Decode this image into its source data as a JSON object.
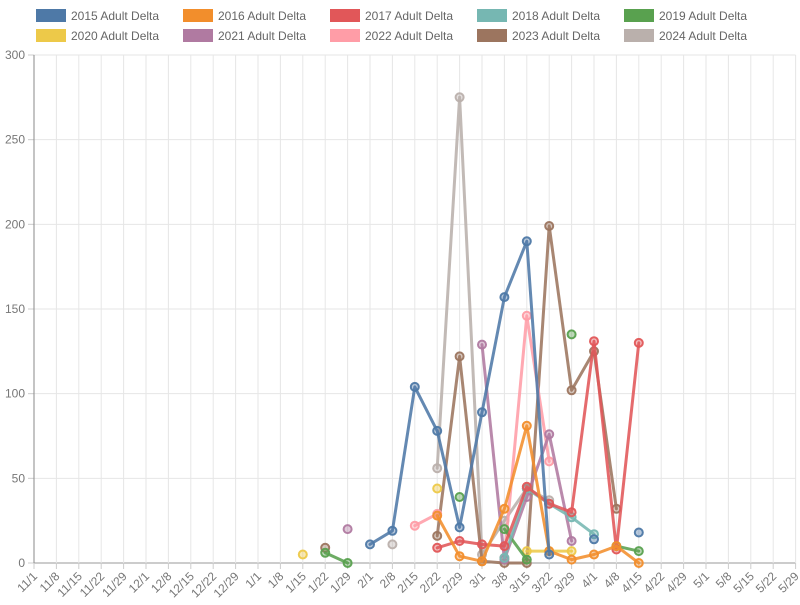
{
  "chart_data": {
    "type": "line",
    "title": "",
    "legend_position": "top",
    "legend_rows": 2,
    "grid": true,
    "background": "#ffffff",
    "axis_color": "#8a8a8a",
    "gridline_color": "#e6e6e6",
    "tick_label_color": "#777777",
    "legend_label_color": "#666666",
    "categories": [
      "11/1",
      "11/8",
      "11/15",
      "11/22",
      "11/29",
      "12/1",
      "12/8",
      "12/15",
      "12/22",
      "12/29",
      "1/1",
      "1/8",
      "1/15",
      "1/22",
      "1/29",
      "2/1",
      "2/8",
      "2/15",
      "2/22",
      "2/29",
      "3/1",
      "3/8",
      "3/15",
      "3/22",
      "3/29",
      "4/1",
      "4/8",
      "4/15",
      "4/22",
      "4/29",
      "5/1",
      "5/8",
      "5/15",
      "5/22",
      "5/29"
    ],
    "ylim": [
      0,
      300
    ],
    "y_ticks": [
      0,
      50,
      100,
      150,
      200,
      250,
      300
    ],
    "series": [
      {
        "name": "2015 Adult Delta",
        "color": "#4e79a7",
        "values": [
          null,
          null,
          null,
          null,
          null,
          null,
          null,
          null,
          null,
          null,
          null,
          null,
          null,
          null,
          null,
          11,
          19,
          104,
          78,
          21,
          89,
          157,
          190,
          5,
          null,
          14,
          null,
          18,
          null,
          null,
          null,
          null,
          null,
          null,
          null
        ]
      },
      {
        "name": "2016 Adult Delta",
        "color": "#f28e2c",
        "values": [
          null,
          null,
          null,
          null,
          null,
          null,
          null,
          null,
          null,
          null,
          null,
          null,
          null,
          null,
          null,
          null,
          null,
          null,
          28,
          4,
          1,
          32,
          81,
          7,
          2,
          5,
          10,
          0,
          null,
          null,
          null,
          null,
          null,
          null,
          null
        ]
      },
      {
        "name": "2017 Adult Delta",
        "color": "#e15759",
        "values": [
          null,
          null,
          null,
          null,
          null,
          null,
          null,
          null,
          null,
          null,
          null,
          null,
          null,
          null,
          null,
          null,
          null,
          null,
          9,
          13,
          11,
          10,
          45,
          35,
          30,
          131,
          8,
          130,
          null,
          null,
          null,
          null,
          null,
          null,
          null
        ]
      },
      {
        "name": "2018 Adult Delta",
        "color": "#76b7b2",
        "values": [
          null,
          null,
          null,
          null,
          null,
          null,
          null,
          null,
          null,
          null,
          null,
          null,
          null,
          null,
          null,
          null,
          null,
          null,
          null,
          null,
          null,
          3,
          44,
          35,
          27,
          17,
          null,
          null,
          null,
          null,
          null,
          null,
          null,
          null,
          null
        ]
      },
      {
        "name": "2019 Adult Delta",
        "color": "#59a14f",
        "values": [
          null,
          null,
          null,
          null,
          null,
          null,
          null,
          null,
          null,
          null,
          null,
          null,
          null,
          6,
          0,
          null,
          null,
          null,
          null,
          39,
          null,
          20,
          2,
          null,
          135,
          null,
          10,
          7,
          null,
          null,
          null,
          null,
          null,
          null,
          null
        ]
      },
      {
        "name": "2020 Adult Delta",
        "color": "#edc949",
        "values": [
          null,
          null,
          null,
          null,
          null,
          null,
          null,
          null,
          null,
          null,
          null,
          null,
          5,
          null,
          null,
          null,
          null,
          null,
          44,
          null,
          null,
          null,
          7,
          7,
          7,
          null,
          null,
          null,
          null,
          null,
          null,
          null,
          null,
          null,
          null
        ]
      },
      {
        "name": "2021 Adult Delta",
        "color": "#b07aa1",
        "values": [
          null,
          null,
          null,
          null,
          null,
          null,
          null,
          null,
          null,
          null,
          null,
          null,
          null,
          null,
          20,
          null,
          null,
          null,
          null,
          null,
          129,
          2,
          39,
          76,
          13,
          null,
          null,
          null,
          null,
          null,
          null,
          null,
          null,
          null,
          null
        ]
      },
      {
        "name": "2022 Adult Delta",
        "color": "#ff9da7",
        "values": [
          null,
          null,
          null,
          null,
          null,
          null,
          null,
          null,
          null,
          null,
          null,
          null,
          null,
          null,
          null,
          null,
          null,
          22,
          29,
          null,
          null,
          3,
          146,
          60,
          null,
          null,
          null,
          null,
          null,
          null,
          null,
          null,
          null,
          null,
          null
        ]
      },
      {
        "name": "2023 Adult Delta",
        "color": "#9c755f",
        "values": [
          null,
          null,
          null,
          null,
          null,
          null,
          null,
          null,
          null,
          null,
          null,
          null,
          null,
          9,
          null,
          null,
          null,
          null,
          16,
          122,
          1,
          0,
          0,
          199,
          102,
          125,
          32,
          null,
          null,
          null,
          null,
          null,
          null,
          null,
          null
        ]
      },
      {
        "name": "2024 Adult Delta",
        "color": "#bab0ac",
        "values": [
          null,
          null,
          null,
          null,
          null,
          null,
          null,
          null,
          null,
          null,
          null,
          null,
          null,
          null,
          null,
          null,
          11,
          null,
          56,
          275,
          5,
          25,
          44,
          37,
          null,
          null,
          null,
          null,
          null,
          null,
          null,
          null,
          null,
          null,
          null
        ]
      }
    ]
  }
}
